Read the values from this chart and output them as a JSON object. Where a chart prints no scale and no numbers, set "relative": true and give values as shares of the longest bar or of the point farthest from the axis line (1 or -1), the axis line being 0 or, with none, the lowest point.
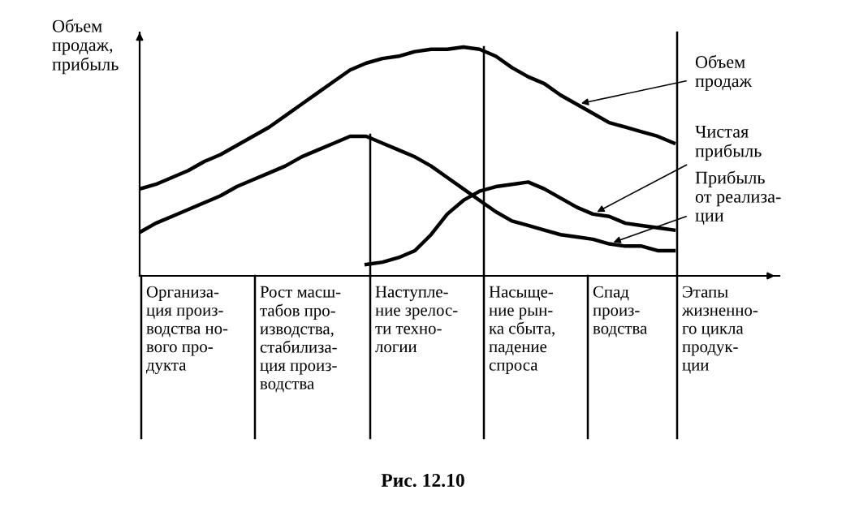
{
  "chart_data": {
    "type": "line",
    "relative": true,
    "ylabel": "Объем\nпродаж,\nприбыль",
    "categories": [
      null,
      null,
      null,
      null,
      null,
      null,
      null,
      null,
      null,
      null,
      null,
      null,
      null,
      null,
      null,
      null,
      null,
      null,
      null,
      null,
      null,
      null,
      null,
      null,
      null,
      null,
      null,
      null,
      null,
      null,
      null,
      null,
      null,
      null
    ],
    "series": [
      {
        "name": "Объем\nпродаж",
        "color": "#000000",
        "values": [
          0.38,
          0.4,
          0.43,
          0.46,
          0.5,
          0.53,
          0.57,
          0.61,
          0.65,
          0.7,
          0.75,
          0.8,
          0.85,
          0.9,
          0.93,
          0.95,
          0.96,
          0.98,
          0.99,
          0.99,
          1,
          0.99,
          0.96,
          0.91,
          0.87,
          0.84,
          0.79,
          0.75,
          0.71,
          0.67,
          0.65,
          0.63,
          0.61,
          0.58
        ]
      },
      {
        "name": "Чистая\nприбыль",
        "color": "#000000",
        "values": [
          null,
          null,
          null,
          null,
          null,
          null,
          null,
          null,
          null,
          null,
          null,
          null,
          null,
          null,
          0.05,
          0.06,
          0.08,
          0.11,
          0.18,
          0.27,
          0.33,
          0.37,
          0.39,
          0.4,
          0.41,
          0.38,
          0.34,
          0.3,
          0.27,
          0.26,
          0.23,
          0.22,
          0.21,
          0.2
        ]
      },
      {
        "name": "Прибыль\nот реализа-\nции",
        "color": "#000000",
        "values": [
          0.19,
          0.23,
          0.26,
          0.29,
          0.32,
          0.35,
          0.39,
          0.42,
          0.45,
          0.48,
          0.52,
          0.55,
          0.58,
          0.61,
          0.61,
          0.58,
          0.55,
          0.52,
          0.48,
          0.43,
          0.38,
          0.33,
          0.28,
          0.24,
          0.22,
          0.2,
          0.18,
          0.17,
          0.16,
          0.14,
          0.13,
          0.13,
          0.11,
          0.11
        ]
      }
    ],
    "annotations": [
      "Организа-\nция произ-\nводства но-\nвого про-\nдукта",
      "Рост масш-\nтабов про-\nизводства,\nстабилиза-\nция произ-\nводства",
      "Наступле-\nние зрелос-\nти техно-\nлогии",
      "Насыще-\nние рын-\nка сбыта,\nпадение\nспроса",
      "Спад\nпроиз-\nводства",
      "Этапы\nжизненно-\nго цикла\nпродук-\nции",
      "Рис. 12.10"
    ],
    "legend": false
  }
}
